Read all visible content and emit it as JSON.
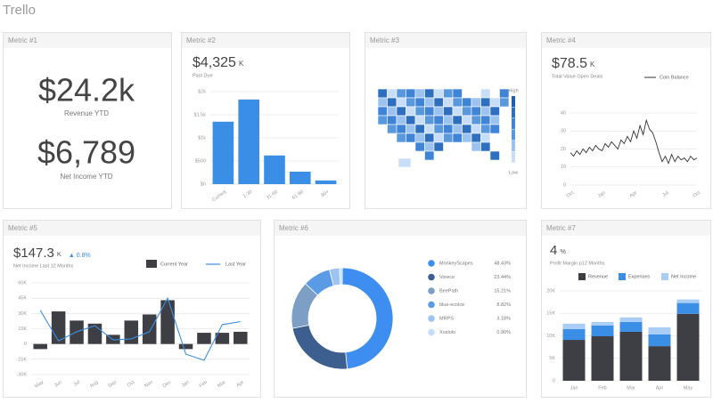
{
  "header": {
    "title": "Trello"
  },
  "cards": [
    {
      "title": "Metric #1",
      "kpis": [
        {
          "value": "$24.2k",
          "label": "Revenue YTD"
        },
        {
          "value": "$6,789",
          "label": "Net Income YTD"
        }
      ]
    },
    {
      "title": "Metric #2",
      "kpi": "$4,325",
      "kpi_unit": "K",
      "caption": "Past Due",
      "chart": {
        "type": "bar",
        "categories": [
          "Current",
          "1-30",
          "31-60",
          "61-90",
          "90+"
        ],
        "values": [
          1350,
          1830,
          620,
          270,
          80
        ],
        "color": "#3a8ee6",
        "ylim": [
          0,
          2000
        ],
        "yticks": [
          {
            "value": 0,
            "label": "$0"
          },
          {
            "value": 500,
            "label": "$500"
          },
          {
            "value": 1000,
            "label": "$1k"
          },
          {
            "value": 1500,
            "label": "$1.5k"
          },
          {
            "value": 2000,
            "label": "$2k"
          }
        ],
        "grid": true
      }
    },
    {
      "title": "Metric #3",
      "chart": {
        "type": "map",
        "legend": [
          "High",
          "Low"
        ]
      }
    },
    {
      "title": "Metric #4",
      "kpi": "$78.5",
      "kpi_unit": "K",
      "caption": "Total Value Open Deals",
      "chart": {
        "type": "line",
        "categories": [
          "Oct",
          null,
          null,
          null,
          null,
          null,
          null,
          null,
          null,
          null,
          "Jan",
          null,
          null,
          null,
          null,
          null,
          null,
          null,
          null,
          null,
          "Apr",
          null,
          null,
          null,
          null,
          null,
          null,
          null,
          null,
          null,
          "Jul",
          null,
          null,
          null,
          null,
          null,
          null,
          null,
          null,
          null,
          "Oct"
        ],
        "series": [
          {
            "name": "Coin Balance",
            "color": "#333333",
            "values": [
              18,
              16,
              19,
              17,
              20,
              18,
              21,
              19,
              22,
              20,
              19,
              23,
              21,
              24,
              22,
              20,
              25,
              23,
              27,
              24,
              30,
              26,
              33,
              28,
              36,
              31,
              29,
              24,
              18,
              13,
              16,
              12,
              17,
              13,
              16,
              14,
              15,
              13,
              16,
              14,
              15
            ]
          }
        ],
        "ylim": [
          0,
          40
        ],
        "yticks": [
          0,
          10,
          20,
          30,
          40
        ],
        "grid": true
      }
    },
    {
      "title": "Metric #5",
      "kpi": "$147.3",
      "kpi_unit": "K",
      "change": "▲ 0.8%",
      "caption": "Net Income Last 12 Months",
      "chart": {
        "type": "bar-line",
        "categories": [
          "May",
          "Jun",
          "Jul",
          "Aug",
          "Sep",
          "Oct",
          "Nov",
          "Dec",
          "Jan",
          "Feb",
          "Mar",
          "Apr"
        ],
        "series": [
          {
            "name": "Current Year",
            "type": "bar",
            "color": "#3d3f44",
            "values": [
              -5000,
              32000,
              23000,
              20000,
              9000,
              23000,
              29000,
              43000,
              -5000,
              11000,
              11000,
              12000
            ]
          },
          {
            "name": "Last Year",
            "type": "line",
            "color": "#3a8ee6",
            "values": [
              33000,
              3000,
              12000,
              18000,
              4000,
              5000,
              12000,
              45000,
              -10000,
              -16000,
              19000,
              22000
            ]
          }
        ],
        "ylim": [
          -30000,
          60000
        ],
        "yticks": [
          {
            "value": -30000,
            "label": "-30K"
          },
          {
            "value": -15000,
            "label": "-15K"
          },
          0,
          {
            "value": 15000,
            "label": "15K"
          },
          {
            "value": 30000,
            "label": "30K"
          },
          {
            "value": 45000,
            "label": "45K"
          },
          {
            "value": 60000,
            "label": "60K"
          }
        ],
        "grid": true
      }
    },
    {
      "title": "Metric #6",
      "chart": {
        "type": "donut",
        "categories": [
          "MonkeyScapes",
          "Vorece",
          "BeePath",
          "blue-ecolce",
          "MRPS",
          "Xuxlolo"
        ],
        "values": [
          48.43,
          23.44,
          15.21,
          8.82,
          3.18,
          0.9
        ],
        "value_labels": [
          "48.43%",
          "23.44%",
          "15.21%",
          "8.82%",
          "3.18%",
          "0.90%"
        ],
        "colors": [
          "#3d8ef0",
          "#3d5f8f",
          "#7d9fc5",
          "#5b9be6",
          "#9cc3f2",
          "#c5dcf7"
        ]
      }
    },
    {
      "title": "Metric #7",
      "kpi": "4",
      "kpi_unit": "%",
      "caption": "Profit Margin p12 Months",
      "chart": {
        "type": "stacked-bar",
        "categories": [
          "Jan",
          "Feb",
          "Mar",
          "Apr",
          "May"
        ],
        "series": [
          {
            "name": "Revenue",
            "color": "#3d3f44",
            "values": [
              9100,
              9900,
              10900,
              7700,
              14900
            ]
          },
          {
            "name": "Expenses",
            "color": "#3a8ee6",
            "values": [
              2400,
              2400,
              2200,
              2600,
              2400
            ]
          },
          {
            "name": "Net Income",
            "color": "#a9cdf5",
            "values": [
              1200,
              800,
              1000,
              1600,
              800
            ]
          }
        ],
        "ylim": [
          0,
          20000
        ],
        "yticks": [
          0,
          {
            "value": 5000,
            "label": "5K"
          },
          {
            "value": 10000,
            "label": "10K"
          },
          {
            "value": 15000,
            "label": "15K"
          },
          {
            "value": 20000,
            "label": "20K"
          }
        ],
        "grid": true
      }
    }
  ]
}
